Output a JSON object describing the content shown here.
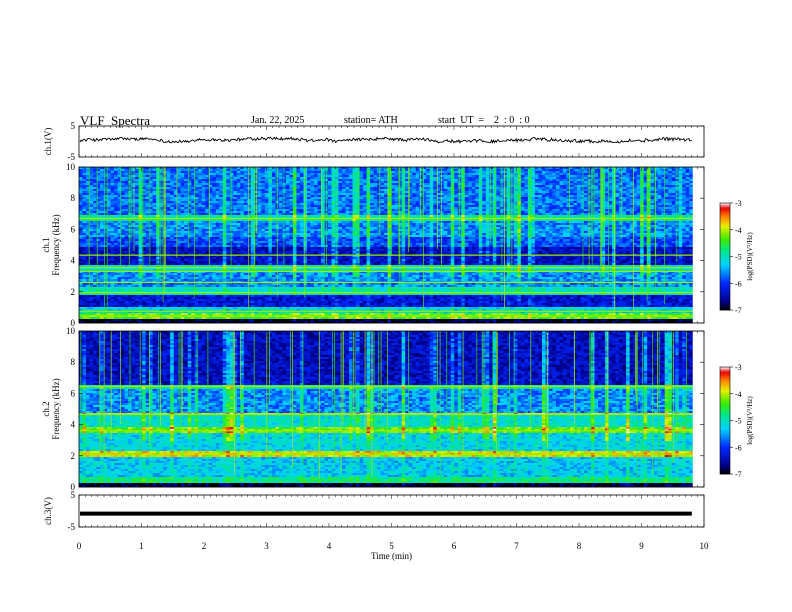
{
  "header": {
    "title": "VLF  Spectra",
    "date": "Jan. 22, 2025",
    "station": "station= ATH",
    "start": "start  UT  =    2  : 0  : 0"
  },
  "chart_data": [
    {
      "type": "line",
      "name": "ch.1 waveform",
      "ylabel": "ch.1(V)",
      "xlim": [
        0,
        10
      ],
      "ylim": [
        -5,
        5
      ],
      "yticks": [
        "5",
        "-5"
      ],
      "x_extent_min": 9.82,
      "baseline_v": 0.4,
      "noise_amplitude_v": 0.9,
      "line_color": "#000000"
    },
    {
      "type": "heatmap",
      "name": "ch.1 spectrogram",
      "ylabel": "ch.1\nFrequency  (kHz)",
      "xlim": [
        0,
        10
      ],
      "ylim": [
        0,
        10
      ],
      "yticks": [
        "0",
        "2",
        "4",
        "6",
        "8",
        "10"
      ],
      "colorbar": {
        "label": "log(PSD)(V²/Hz)",
        "range": [
          -7,
          -3
        ],
        "ticks": [
          "-3",
          "-4",
          "-5",
          "-6",
          "-7"
        ]
      },
      "bands": [
        {
          "f": [
            0.0,
            0.25
          ],
          "level": -6.9
        },
        {
          "f": [
            0.25,
            0.6
          ],
          "level": -4.3
        },
        {
          "f": [
            0.6,
            1.0
          ],
          "level": -5.2
        },
        {
          "f": [
            1.0,
            1.8
          ],
          "level": -6.3
        },
        {
          "f": [
            1.8,
            2.3
          ],
          "level": -5.0
        },
        {
          "f": [
            2.3,
            3.3
          ],
          "level": -5.6
        },
        {
          "f": [
            3.3,
            3.7
          ],
          "level": -5.1
        },
        {
          "f": [
            3.7,
            4.9
          ],
          "level": -6.4
        },
        {
          "f": [
            4.9,
            5.5
          ],
          "level": -5.9
        },
        {
          "f": [
            5.5,
            6.6
          ],
          "level": -5.6
        },
        {
          "f": [
            6.6,
            6.9
          ],
          "level": -4.9
        },
        {
          "f": [
            6.9,
            10.0
          ],
          "level": -5.7
        }
      ],
      "lines_khz": [
        0.45,
        0.75,
        1.95,
        2.6,
        3.3,
        3.55,
        4.35,
        6.7
      ]
    },
    {
      "type": "heatmap",
      "name": "ch.2 spectrogram",
      "ylabel": "ch.2\nFrequency  (kHz)",
      "xlim": [
        0,
        10
      ],
      "ylim": [
        0,
        10
      ],
      "yticks": [
        "0",
        "2",
        "4",
        "6",
        "8",
        "10"
      ],
      "colorbar": {
        "label": "log(PSD)(V²/Hz)",
        "range": [
          -7,
          -3
        ],
        "ticks": [
          "-3",
          "-4",
          "-5",
          "-6",
          "-7"
        ]
      },
      "bands": [
        {
          "f": [
            0.0,
            0.2
          ],
          "level": -6.9
        },
        {
          "f": [
            0.2,
            0.6
          ],
          "level": -4.8
        },
        {
          "f": [
            0.6,
            1.9
          ],
          "level": -5.3
        },
        {
          "f": [
            1.9,
            2.3
          ],
          "level": -3.9
        },
        {
          "f": [
            2.3,
            3.5
          ],
          "level": -5.2
        },
        {
          "f": [
            3.5,
            3.8
          ],
          "level": -4.3
        },
        {
          "f": [
            3.8,
            4.6
          ],
          "level": -5.1
        },
        {
          "f": [
            4.6,
            4.8
          ],
          "level": -4.0
        },
        {
          "f": [
            4.8,
            6.3
          ],
          "level": -5.6
        },
        {
          "f": [
            6.3,
            6.6
          ],
          "level": -4.9
        },
        {
          "f": [
            6.6,
            10.0
          ],
          "level": -6.4
        }
      ],
      "lines_khz": [
        2.1,
        3.6,
        4.65,
        6.45
      ]
    },
    {
      "type": "line",
      "name": "ch.3 waveform",
      "ylabel": "ch.3(V)",
      "xlabel": "Time  (min)",
      "xlim": [
        0,
        10
      ],
      "ylim": [
        -5,
        5
      ],
      "yticks": [
        "5",
        "-5"
      ],
      "xticks": [
        "0",
        "1",
        "2",
        "3",
        "4",
        "5",
        "6",
        "7",
        "8",
        "9",
        "10"
      ],
      "x_extent_min": 9.82,
      "baseline_v": -0.8,
      "line_color": "#000000"
    }
  ]
}
